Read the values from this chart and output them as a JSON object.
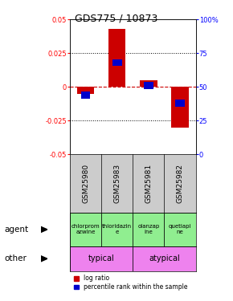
{
  "title": "GDS775 / 10873",
  "samples": [
    "GSM25980",
    "GSM25983",
    "GSM25981",
    "GSM25982"
  ],
  "log_ratios": [
    -0.005,
    0.043,
    0.005,
    -0.03
  ],
  "percentile_ranks": [
    0.44,
    0.68,
    0.51,
    0.38
  ],
  "ylim": [
    -0.05,
    0.05
  ],
  "yticks_left": [
    -0.05,
    -0.025,
    0,
    0.025,
    0.05
  ],
  "yticks_right": [
    0,
    25,
    50,
    75,
    100
  ],
  "agent_texts": [
    "chlorprom\nazwine",
    "thioridazin\ne",
    "olanzap\nine",
    "quetiapi\nne"
  ],
  "agent_color": "#90ee90",
  "other_groups": [
    [
      "typical",
      2
    ],
    [
      "atypical",
      2
    ]
  ],
  "other_color": "#ee82ee",
  "bar_color_red": "#cc0000",
  "bar_color_blue": "#0000cc",
  "zero_line_color": "#cc0000",
  "bg_color": "#ffffff",
  "sample_bg_color": "#cccccc",
  "percentile_bar_height": 0.005
}
